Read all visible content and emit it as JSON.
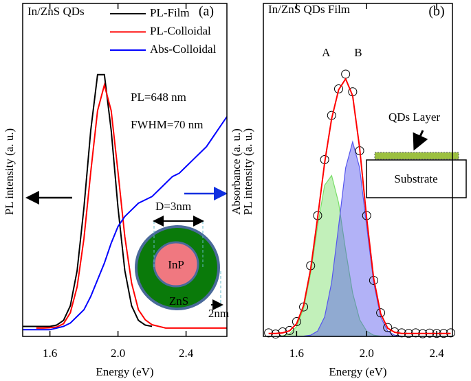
{
  "chart_data": [
    {
      "type": "line",
      "title": "In/ZnS QDs",
      "panel": "(a)",
      "xlabel": "Energy (eV)",
      "ylabel": "PL intensity (a. u.)",
      "y2label": "Absorbance (a. u.)",
      "xlim": [
        1.44,
        2.64
      ],
      "ylim": [
        0,
        1
      ],
      "xticks": [
        1.6,
        {
          "value": 2,
          "label": "2.0"
        },
        2.4
      ],
      "legend": "upper right",
      "annotations": [
        "PL=648 nm",
        "FWHM=70 nm",
        "D=3nm",
        "InP",
        "ZnS",
        "2nm"
      ],
      "x": [
        1.44,
        1.48,
        1.52,
        1.56,
        1.6,
        1.64,
        1.68,
        1.72,
        1.76,
        1.8,
        1.84,
        1.88,
        1.92,
        1.96,
        2.0,
        2.04,
        2.08,
        2.12,
        2.16,
        2.2,
        2.24,
        2.28,
        2.32,
        2.36,
        2.4,
        2.44,
        2.48,
        2.52,
        2.56,
        2.6,
        2.64
      ],
      "series": [
        {
          "name": "PL-Film",
          "color": "#000000",
          "type": "line",
          "values": [
            0.03,
            0.03,
            0.03,
            0.03,
            0.03,
            0.034,
            0.048,
            0.092,
            0.198,
            0.387,
            0.619,
            0.786,
            0.786,
            0.619,
            0.387,
            0.198,
            0.092,
            0.048,
            0.034,
            0.03,
            null,
            null,
            null,
            null,
            null,
            null,
            null,
            null,
            null,
            null,
            null
          ]
        },
        {
          "name": "PL-Colloidal",
          "color": "#ff0000",
          "type": "line",
          "values": [
            null,
            null,
            0.025,
            0.025,
            0.026,
            0.028,
            0.038,
            0.071,
            0.149,
            0.294,
            0.494,
            0.678,
            0.755,
            0.678,
            0.494,
            0.3,
            0.16,
            0.08,
            0.05,
            0.035,
            0.03,
            0.025,
            0.025,
            0.025,
            0.025,
            0.025,
            0.025,
            0.025,
            0.025,
            0.025,
            0.025
          ]
        },
        {
          "name": "Abs-Colloidal",
          "color": "#0000ff",
          "type": "line",
          "values": [
            0.02,
            0.02,
            0.02,
            0.02,
            0.02,
            0.025,
            0.03,
            0.04,
            0.06,
            0.08,
            0.12,
            0.17,
            0.22,
            0.28,
            0.33,
            0.36,
            0.38,
            0.4,
            0.41,
            0.42,
            0.44,
            0.46,
            0.48,
            0.49,
            0.51,
            0.53,
            0.55,
            0.57,
            0.6,
            0.63,
            0.66
          ]
        }
      ]
    },
    {
      "type": "line",
      "title": "In/ZnS QDs Film",
      "panel": "(b)",
      "xlabel": "Energy (eV)",
      "ylabel": "PL intensity (a. u.)",
      "xlim": [
        1.41,
        2.49
      ],
      "ylim": [
        0,
        1.13
      ],
      "xticks": [
        1.6,
        {
          "value": 2,
          "label": "2.0"
        },
        2.4
      ],
      "annotations": [
        "QDs Layer",
        "Substrate"
      ],
      "x": [
        1.44,
        1.48,
        1.52,
        1.56,
        1.6,
        1.64,
        1.68,
        1.72,
        1.76,
        1.8,
        1.84,
        1.88,
        1.92,
        1.96,
        2.0,
        2.04,
        2.08,
        2.12,
        2.16,
        2.2,
        2.24,
        2.28,
        2.32,
        2.36,
        2.4,
        2.44,
        2.48
      ],
      "series": [
        {
          "name": "A",
          "color": "#77dd66",
          "type": "area",
          "values": [
            0,
            0,
            0.002,
            0.009,
            0.033,
            0.095,
            0.214,
            0.375,
            0.513,
            0.546,
            0.453,
            0.292,
            0.147,
            0.057,
            0.018,
            0.004,
            0.001,
            0,
            0,
            0,
            0,
            0,
            0,
            0,
            0,
            0,
            0
          ]
        },
        {
          "name": "B",
          "color": "#5555ee",
          "type": "area",
          "values": [
            0,
            0,
            0,
            0,
            0,
            0.001,
            0.004,
            0.018,
            0.066,
            0.183,
            0.374,
            0.572,
            0.66,
            0.572,
            0.374,
            0.183,
            0.066,
            0.018,
            0.004,
            0.001,
            0,
            0,
            0,
            0,
            0,
            0,
            0
          ]
        },
        {
          "color": "#000000",
          "type": "scatter",
          "values": [
            0.012,
            0.008,
            0.015,
            0.02,
            0.05,
            0.1,
            0.24,
            0.41,
            0.6,
            0.75,
            0.84,
            0.89,
            0.83,
            0.63,
            0.41,
            0.19,
            0.08,
            0.03,
            0.015,
            0.012,
            0.01,
            0.012,
            0.009,
            0.011,
            0.01,
            0.01,
            0.012
          ]
        },
        {
          "color": "#ff0000",
          "type": "line",
          "values": [
            0.01,
            0.01,
            0.012,
            0.019,
            0.043,
            0.105,
            0.228,
            0.403,
            0.589,
            0.739,
            0.837,
            0.874,
            0.817,
            0.639,
            0.402,
            0.197,
            0.077,
            0.028,
            0.014,
            0.01,
            0.01,
            0.01,
            0.01,
            0.01,
            0.01,
            0.01,
            0.01
          ]
        }
      ]
    }
  ]
}
